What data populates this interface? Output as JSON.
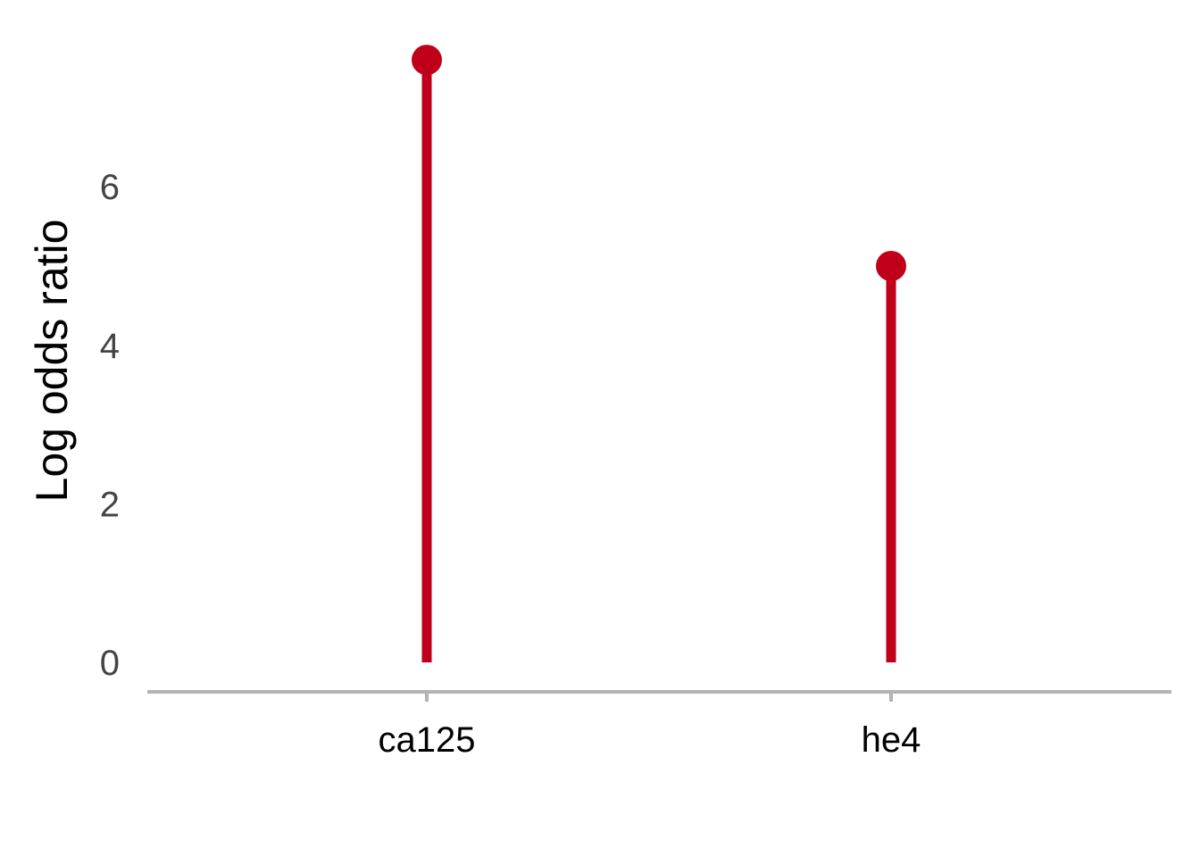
{
  "chart_data": {
    "type": "lollipop",
    "categories": [
      "ca125",
      "he4"
    ],
    "values": [
      7.6,
      5.0
    ],
    "title": "",
    "xlabel": "",
    "ylabel": "Log odds ratio",
    "ylim": [
      0,
      7.6
    ],
    "yticks": [
      "0",
      "2",
      "4",
      "6"
    ],
    "grid": false,
    "colors": {
      "stem": "#c0001a",
      "point": "#c0001a",
      "axis_line": "#b3b3b3",
      "tick_text": "#444444"
    }
  }
}
